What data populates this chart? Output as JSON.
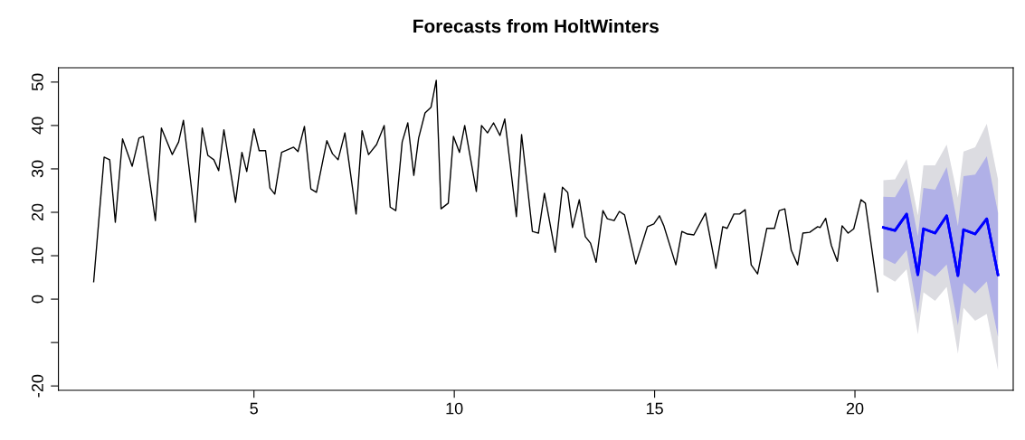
{
  "chart_data": {
    "type": "line",
    "title": "Forecasts from HoltWinters",
    "xlim": [
      0.12,
      23.95
    ],
    "xticks": [
      5,
      10,
      15,
      20
    ],
    "ylim": [
      -21,
      53.3
    ],
    "yticks": [
      -20,
      {
        "value": -10,
        "label": null
      },
      0,
      10,
      20,
      30,
      40,
      50
    ],
    "grid": false,
    "series": [
      {
        "color": "#000000",
        "x": [
          1,
          1.26,
          1.4,
          1.54,
          1.72,
          1.96,
          2.13,
          2.24,
          2.54,
          2.69,
          2.96,
          3.12,
          3.24,
          3.54,
          3.71,
          3.85,
          4.0,
          4.12,
          4.25,
          4.54,
          4.7,
          4.82,
          5.0,
          5.13,
          5.29,
          5.4,
          5.52,
          5.69,
          5.99,
          6.1,
          6.26,
          6.42,
          6.56,
          6.82,
          6.96,
          7.1,
          7.27,
          7.55,
          7.7,
          7.86,
          8.06,
          8.25,
          8.4,
          8.54,
          8.7,
          8.84,
          8.99,
          9.11,
          9.27,
          9.42,
          9.55,
          9.67,
          9.85,
          9.98,
          10.13,
          10.26,
          10.55,
          10.68,
          10.83,
          10.98,
          11.14,
          11.26,
          11.55,
          11.68,
          11.95,
          12.1,
          12.25,
          12.52,
          12.7,
          12.83,
          12.95,
          13.12,
          13.27,
          13.4,
          13.54,
          13.71,
          13.82,
          13.99,
          14.12,
          14.25,
          14.53,
          14.82,
          14.98,
          15.12,
          15.23,
          15.53,
          15.68,
          15.82,
          15.98,
          16.27,
          16.53,
          16.7,
          16.81,
          16.98,
          17.12,
          17.26,
          17.41,
          17.57,
          17.8,
          17.99,
          18.11,
          18.25,
          18.41,
          18.57,
          18.7,
          18.87,
          19.07,
          19.13,
          19.27,
          19.41,
          19.56,
          19.68,
          19.83,
          19.97,
          20.15,
          20.26,
          20.57
        ],
        "values": [
          4,
          32.7,
          32.1,
          17.7,
          36.9,
          30.6,
          37.1,
          37.5,
          18.1,
          39.4,
          33.3,
          36.2,
          41.2,
          17.7,
          39.4,
          33.1,
          32.1,
          29.6,
          39.0,
          22.3,
          33.8,
          29.4,
          39.2,
          34.2,
          34.2,
          25.6,
          24.2,
          33.8,
          35.0,
          34.0,
          39.8,
          25.4,
          24.6,
          36.5,
          33.5,
          32.1,
          38.3,
          19.6,
          38.8,
          33.3,
          35.6,
          40.0,
          21.2,
          20.4,
          36.2,
          40.6,
          28.5,
          37.1,
          42.9,
          44.2,
          50.4,
          20.8,
          22.1,
          37.5,
          33.8,
          40.0,
          24.8,
          40.0,
          38.3,
          40.6,
          37.7,
          41.5,
          19.0,
          37.9,
          15.6,
          15.2,
          24.4,
          10.8,
          25.8,
          24.6,
          16.5,
          22.9,
          14.4,
          12.9,
          8.5,
          20.4,
          18.5,
          18.1,
          20.2,
          19.4,
          8.1,
          16.7,
          17.3,
          19.2,
          16.9,
          7.9,
          15.6,
          15.0,
          14.8,
          19.8,
          7.1,
          16.7,
          16.3,
          19.6,
          19.6,
          20.6,
          7.9,
          5.8,
          16.3,
          16.3,
          20.4,
          20.8,
          11.3,
          7.9,
          15.2,
          15.4,
          16.7,
          16.5,
          18.6,
          12.4,
          8.7,
          16.9,
          15.2,
          16.2,
          22.9,
          22.1,
          1.7
        ]
      },
      {
        "color": "#0000ff",
        "x": [
          20.71,
          21.0,
          21.29,
          21.57,
          21.71,
          22.0,
          22.29,
          22.57,
          22.71,
          23.0,
          23.29,
          23.57
        ],
        "values": [
          16.5,
          15.8,
          19.6,
          5.6,
          16.2,
          15.2,
          19.2,
          5.4,
          16.0,
          15.0,
          18.5,
          5.6
        ],
        "lower": [
          5.6,
          4.0,
          6.9,
          -8.1,
          1.6,
          -0.4,
          2.8,
          -12.6,
          -2.0,
          -5.0,
          -3.4,
          -16.4
        ],
        "upper": [
          27.4,
          27.6,
          32.3,
          19.3,
          30.8,
          30.8,
          35.6,
          23.4,
          34.0,
          35.0,
          40.4,
          27.6
        ]
      },
      {
        "color": "#0000ff",
        "x": [
          20.71,
          21.0,
          21.29,
          21.57,
          21.71,
          22.0,
          22.29,
          22.57,
          22.71,
          23.0,
          23.29,
          23.57
        ],
        "values": [
          16.5,
          15.8,
          19.6,
          5.6,
          16.2,
          15.2,
          19.2,
          5.4,
          16.0,
          15.0,
          18.5,
          5.6
        ],
        "lower": [
          9.4,
          8.1,
          11.3,
          -3.3,
          6.8,
          5.2,
          8.0,
          -6.0,
          3.7,
          1.3,
          4.1,
          -8.7
        ],
        "upper": [
          23.6,
          23.5,
          27.9,
          14.5,
          25.6,
          25.2,
          30.4,
          16.8,
          28.3,
          28.7,
          32.9,
          19.9
        ]
      }
    ]
  }
}
